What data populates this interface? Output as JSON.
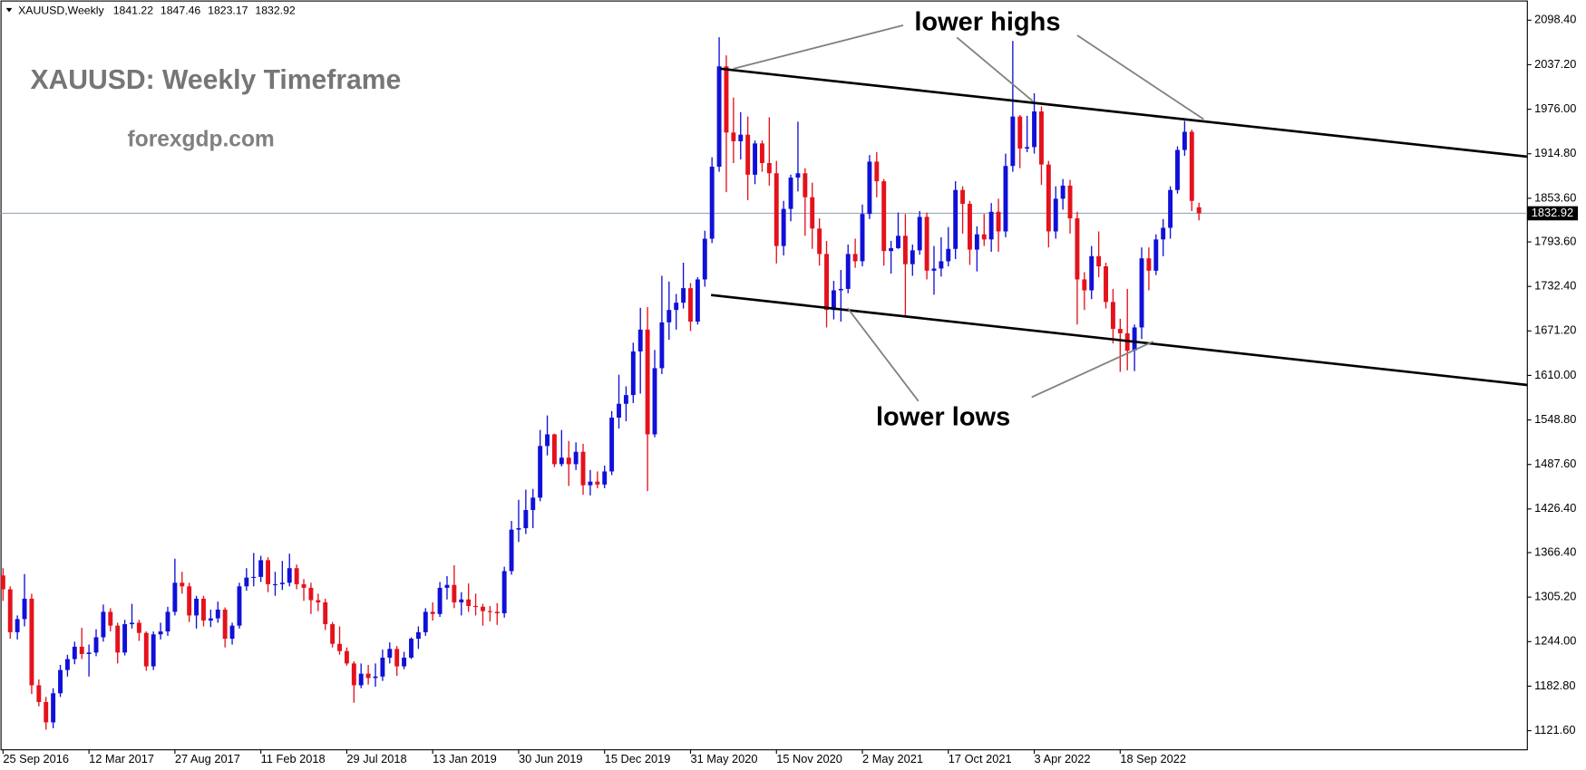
{
  "chart_data": {
    "type": "candlestick",
    "header": "XAUUSD,Weekly",
    "title": "XAUUSD: Weekly Timeframe",
    "subtitle": "forexgdp.com",
    "annotations": [
      "lower highs",
      "lower lows"
    ],
    "up_color": "#1010d8",
    "down_color": "#e4121c",
    "price_line_color": "#9aabba",
    "x": [
      "25 Sep 2016",
      null,
      null,
      null,
      null,
      null,
      null,
      null,
      null,
      null,
      null,
      null,
      "12 Mar 2017",
      null,
      null,
      null,
      null,
      null,
      null,
      null,
      null,
      null,
      null,
      null,
      "27 Aug 2017",
      null,
      null,
      null,
      null,
      null,
      null,
      null,
      null,
      null,
      null,
      null,
      "11 Feb 2018",
      null,
      null,
      null,
      null,
      null,
      null,
      null,
      null,
      null,
      null,
      null,
      "29 Jul 2018",
      null,
      null,
      null,
      null,
      null,
      null,
      null,
      null,
      null,
      null,
      null,
      "13 Jan 2019",
      null,
      null,
      null,
      null,
      null,
      null,
      null,
      null,
      null,
      null,
      null,
      "30 Jun 2019",
      null,
      null,
      null,
      null,
      null,
      null,
      null,
      null,
      null,
      null,
      null,
      "15 Dec 2019",
      null,
      null,
      null,
      null,
      null,
      null,
      null,
      null,
      null,
      null,
      null,
      "31 May 2020",
      null,
      null,
      null,
      null,
      null,
      null,
      null,
      null,
      null,
      null,
      null,
      "15 Nov 2020",
      null,
      null,
      null,
      null,
      null,
      null,
      null,
      null,
      null,
      null,
      null,
      "2 May 2021",
      null,
      null,
      null,
      null,
      null,
      null,
      null,
      null,
      null,
      null,
      null,
      "17 Oct 2021",
      null,
      null,
      null,
      null,
      null,
      null,
      null,
      null,
      null,
      null,
      null,
      "3 Apr 2022",
      null,
      null,
      null,
      null,
      null,
      null,
      null,
      null,
      null,
      null,
      null,
      "18 Sep 2022",
      null,
      null,
      null,
      null,
      null,
      null,
      null,
      null,
      null,
      null,
      null
    ],
    "open": [
      1335,
      1316,
      1257,
      1275,
      1303,
      1184,
      1161,
      1133,
      1173,
      1205,
      1220,
      1237,
      1227,
      1229,
      1250,
      1285,
      1266,
      1229,
      1268,
      1270,
      1256,
      1210,
      1254,
      1258,
      1285,
      1325,
      1320,
      1280,
      1303,
      1273,
      1276,
      1288,
      1248,
      1266,
      1320,
      1332,
      1333,
      1356,
      1323,
      1323,
      1325,
      1345,
      1323,
      1318,
      1301,
      1298,
      1268,
      1241,
      1231,
      1214,
      1184,
      1200,
      1194,
      1196,
      1222,
      1234,
      1210,
      1222,
      1248,
      1257,
      1285,
      1282,
      1318,
      1322,
      1298,
      1302,
      1293,
      1292,
      1286,
      1285,
      1283,
      1341,
      1398,
      1400,
      1425,
      1442,
      1513,
      1529,
      1488,
      1497,
      1488,
      1505,
      1459,
      1464,
      1460,
      1478,
      1552,
      1571,
      1583,
      1643,
      1673,
      1529,
      1620,
      1683,
      1700,
      1710,
      1730,
      1684,
      1742,
      1798,
      1897,
      2035,
      1944,
      1932,
      1941,
      1886,
      1929,
      1902,
      1888,
      1788,
      1839,
      1882,
      1888,
      1855,
      1812,
      1777,
      1700,
      1727,
      1729,
      1777,
      1767,
      1832,
      1904,
      1877,
      1781,
      1785,
      1802,
      1763,
      1782,
      1828,
      1754,
      1757,
      1767,
      1784,
      1865,
      1846,
      1783,
      1804,
      1797,
      1835,
      1808,
      1898,
      1966,
      1922,
      1924,
      1973,
      1900,
      1808,
      1853,
      1871,
      1826,
      1742,
      1727,
      1774,
      1760,
      1711,
      1674,
      1668,
      1644,
      1676,
      1771,
      1754,
      1797,
      1813,
      1865,
      1920,
      1945,
      1841.22
    ],
    "high": [
      1345,
      1320,
      1280,
      1337,
      1310,
      1192,
      1168,
      1180,
      1212,
      1226,
      1244,
      1263,
      1240,
      1261,
      1295,
      1290,
      1270,
      1274,
      1296,
      1274,
      1258,
      1258,
      1270,
      1292,
      1358,
      1340,
      1325,
      1307,
      1307,
      1288,
      1299,
      1291,
      1270,
      1325,
      1345,
      1366,
      1362,
      1360,
      1340,
      1355,
      1365,
      1350,
      1330,
      1325,
      1310,
      1303,
      1271,
      1265,
      1236,
      1217,
      1214,
      1212,
      1214,
      1233,
      1243,
      1238,
      1230,
      1250,
      1265,
      1290,
      1298,
      1326,
      1334,
      1349,
      1312,
      1324,
      1310,
      1296,
      1293,
      1297,
      1347,
      1410,
      1439,
      1453,
      1454,
      1535,
      1555,
      1530,
      1535,
      1520,
      1518,
      1516,
      1480,
      1478,
      1486,
      1561,
      1611,
      1595,
      1655,
      1703,
      1704,
      1645,
      1747,
      1739,
      1722,
      1765,
      1737,
      1745,
      1809,
      1910,
      2075,
      2050,
      1992,
      1972,
      1966,
      1933,
      1933,
      1965,
      1905,
      1850,
      1886,
      1959,
      1895,
      1875,
      1826,
      1795,
      1740,
      1755,
      1790,
      1798,
      1845,
      1913,
      1917,
      1880,
      1795,
      1834,
      1832,
      1790,
      1836,
      1834,
      1788,
      1800,
      1814,
      1877,
      1870,
      1850,
      1815,
      1832,
      1847,
      1853,
      1915,
      2070,
      1968,
      1967,
      1998,
      1980,
      1905,
      1870,
      1880,
      1879,
      1835,
      1752,
      1788,
      1808,
      1765,
      1729,
      1688,
      1729,
      1680,
      1786,
      1786,
      1804,
      1825,
      1870,
      1925,
      1960,
      1948,
      1847.46
    ],
    "low": [
      1300,
      1248,
      1247,
      1265,
      1172,
      1155,
      1123,
      1125,
      1168,
      1196,
      1213,
      1220,
      1196,
      1224,
      1244,
      1258,
      1214,
      1225,
      1262,
      1245,
      1204,
      1205,
      1247,
      1252,
      1280,
      1310,
      1271,
      1262,
      1265,
      1264,
      1270,
      1236,
      1240,
      1262,
      1314,
      1320,
      1326,
      1312,
      1307,
      1315,
      1320,
      1316,
      1300,
      1282,
      1286,
      1260,
      1236,
      1226,
      1211,
      1160,
      1180,
      1185,
      1182,
      1190,
      1214,
      1197,
      1206,
      1220,
      1234,
      1252,
      1273,
      1278,
      1302,
      1290,
      1280,
      1285,
      1280,
      1266,
      1272,
      1267,
      1277,
      1336,
      1381,
      1392,
      1400,
      1437,
      1500,
      1484,
      1485,
      1458,
      1480,
      1446,
      1445,
      1455,
      1455,
      1473,
      1537,
      1547,
      1572,
      1585,
      1451,
      1525,
      1612,
      1659,
      1673,
      1702,
      1671,
      1680,
      1732,
      1792,
      1890,
      1862,
      1902,
      1907,
      1851,
      1873,
      1890,
      1871,
      1764,
      1775,
      1822,
      1863,
      1802,
      1784,
      1761,
      1676,
      1687,
      1684,
      1723,
      1758,
      1760,
      1825,
      1855,
      1761,
      1750,
      1784,
      1690,
      1747,
      1776,
      1742,
      1721,
      1746,
      1760,
      1770,
      1805,
      1762,
      1753,
      1788,
      1780,
      1780,
      1800,
      1890,
      1895,
      1917,
      1915,
      1872,
      1786,
      1798,
      1838,
      1805,
      1680,
      1700,
      1715,
      1745,
      1702,
      1654,
      1615,
      1617,
      1616,
      1660,
      1727,
      1748,
      1774,
      1798,
      1860,
      1912,
      1836,
      1823.17
    ],
    "close": [
      1316,
      1257,
      1275,
      1303,
      1184,
      1161,
      1133,
      1173,
      1205,
      1220,
      1237,
      1227,
      1229,
      1250,
      1285,
      1266,
      1229,
      1268,
      1270,
      1256,
      1210,
      1254,
      1258,
      1285,
      1325,
      1320,
      1280,
      1303,
      1273,
      1276,
      1288,
      1248,
      1266,
      1320,
      1332,
      1333,
      1356,
      1323,
      1323,
      1325,
      1345,
      1323,
      1318,
      1301,
      1298,
      1268,
      1241,
      1231,
      1214,
      1184,
      1200,
      1194,
      1196,
      1222,
      1234,
      1210,
      1222,
      1248,
      1257,
      1285,
      1282,
      1318,
      1322,
      1298,
      1302,
      1293,
      1292,
      1286,
      1285,
      1283,
      1341,
      1398,
      1400,
      1425,
      1442,
      1513,
      1529,
      1488,
      1497,
      1488,
      1505,
      1459,
      1464,
      1460,
      1478,
      1552,
      1571,
      1583,
      1643,
      1673,
      1529,
      1620,
      1683,
      1700,
      1710,
      1730,
      1684,
      1742,
      1798,
      1897,
      2035,
      1944,
      1932,
      1941,
      1886,
      1929,
      1902,
      1888,
      1788,
      1839,
      1882,
      1888,
      1855,
      1812,
      1777,
      1700,
      1727,
      1729,
      1777,
      1767,
      1832,
      1904,
      1877,
      1781,
      1785,
      1802,
      1763,
      1782,
      1828,
      1754,
      1757,
      1767,
      1784,
      1865,
      1846,
      1783,
      1804,
      1797,
      1835,
      1808,
      1898,
      1966,
      1922,
      1924,
      1973,
      1900,
      1808,
      1853,
      1871,
      1826,
      1742,
      1727,
      1774,
      1760,
      1711,
      1674,
      1668,
      1644,
      1676,
      1771,
      1754,
      1797,
      1813,
      1865,
      1920,
      1945,
      1850,
      1832.92
    ],
    "ylim": [
      1095.3,
      2126.2
    ],
    "yticks": [
      {
        "value": 2098.4,
        "label": "2098.40"
      },
      {
        "value": 2037.2,
        "label": "2037.20"
      },
      {
        "value": 1976,
        "label": "1976.00"
      },
      {
        "value": 1914.8,
        "label": "1914.80"
      },
      {
        "value": 1853.6,
        "label": "1853.60"
      },
      {
        "value": 1793.6,
        "label": "1793.60"
      },
      {
        "value": 1732.4,
        "label": "1732.40"
      },
      {
        "value": 1671.2,
        "label": "1671.20"
      },
      {
        "value": 1610,
        "label": "1610.00"
      },
      {
        "value": 1548.8,
        "label": "1548.80"
      },
      {
        "value": 1487.6,
        "label": "1487.60"
      },
      {
        "value": 1426.4,
        "label": "1426.40"
      },
      {
        "value": 1366.4,
        "label": "1366.40"
      },
      {
        "value": 1305.2,
        "label": "1305.20"
      },
      {
        "value": 1244,
        "label": "1244.00"
      },
      {
        "value": 1182.8,
        "label": "1182.80"
      },
      {
        "value": 1121.6,
        "label": "1121.60"
      }
    ]
  }
}
